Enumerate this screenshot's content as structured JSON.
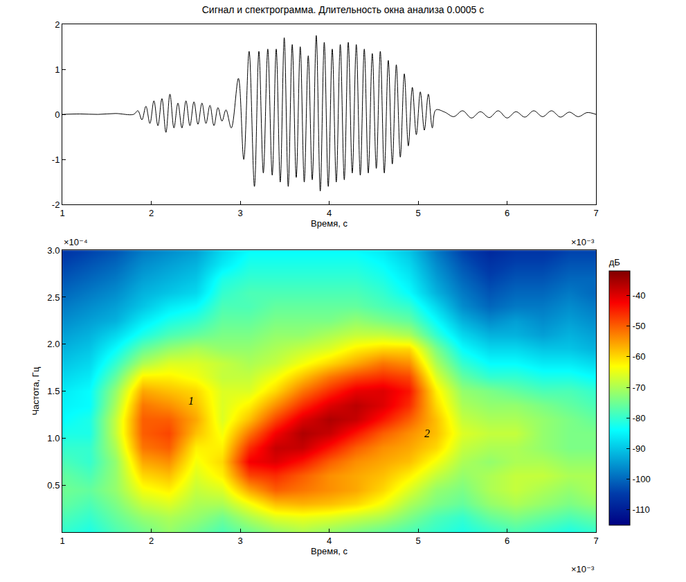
{
  "chart_data": [
    {
      "type": "line",
      "title": "Сигнал и спектрограмма. Длительность окна анализа 0.0005 с",
      "x_label": "Время, с",
      "x_exponent_label": "×10⁻³",
      "color": "#000000",
      "xlim": [
        1,
        7
      ],
      "xticks": [
        1,
        2,
        3,
        4,
        5,
        6,
        7
      ],
      "ylim": [
        -2,
        2
      ],
      "yticks": [
        -2,
        -1,
        0,
        1,
        2
      ],
      "x": [
        1.0,
        1.2,
        1.4,
        1.6,
        1.8,
        1.85,
        1.895,
        1.94,
        1.985,
        2.03,
        2.075,
        2.12,
        2.165,
        2.21,
        2.255,
        2.3,
        2.345,
        2.39,
        2.435,
        2.48,
        2.525,
        2.57,
        2.615,
        2.66,
        2.705,
        2.75,
        2.795,
        2.84,
        2.9,
        2.98,
        3.04,
        3.1,
        3.16,
        3.21,
        3.26,
        3.31,
        3.36,
        3.405,
        3.45,
        3.495,
        3.54,
        3.585,
        3.63,
        3.675,
        3.72,
        3.765,
        3.81,
        3.855,
        3.9,
        3.945,
        3.99,
        4.035,
        4.08,
        4.125,
        4.17,
        4.215,
        4.26,
        4.305,
        4.35,
        4.395,
        4.44,
        4.485,
        4.53,
        4.575,
        4.62,
        4.665,
        4.71,
        4.755,
        4.8,
        4.845,
        4.89,
        4.935,
        4.98,
        5.025,
        5.07,
        5.115,
        5.16,
        5.2,
        5.3,
        5.4,
        5.5,
        5.6,
        5.7,
        5.8,
        5.9,
        6.0,
        6.1,
        6.2,
        6.3,
        6.4,
        6.5,
        6.6,
        6.7,
        6.8,
        6.9,
        7.0
      ],
      "values": [
        0,
        0.01,
        0,
        0.02,
        0,
        0.08,
        -0.12,
        0.18,
        -0.2,
        0.3,
        -0.25,
        0.35,
        -0.4,
        0.45,
        -0.3,
        0.25,
        -0.3,
        0.3,
        -0.25,
        0.28,
        -0.22,
        0.25,
        -0.2,
        0.2,
        -0.25,
        0.15,
        -0.15,
        0.1,
        -0.3,
        0.8,
        -1.0,
        1.4,
        -1.6,
        1.4,
        -1.3,
        1.45,
        -1.35,
        1.45,
        -1.5,
        1.7,
        -1.6,
        1.55,
        -1.4,
        1.5,
        -1.5,
        1.3,
        -1.45,
        1.75,
        -1.7,
        1.6,
        -1.6,
        1.45,
        -1.5,
        1.55,
        -1.45,
        1.6,
        -1.3,
        1.55,
        -1.35,
        1.45,
        -1.3,
        1.35,
        -1.2,
        1.4,
        -1.3,
        1.2,
        -1.1,
        1.1,
        -0.95,
        0.9,
        -0.7,
        0.6,
        -0.45,
        0.5,
        -0.35,
        0.45,
        -0.3,
        0.1,
        0.05,
        -0.05,
        0.08,
        -0.08,
        0.06,
        -0.07,
        0.08,
        -0.08,
        0.06,
        -0.06,
        0.08,
        -0.05,
        0.08,
        -0.06,
        0.05,
        -0.05,
        0.04,
        0
      ]
    },
    {
      "type": "heatmap",
      "x_label": "Время, с",
      "y_label": "Частота, Гц",
      "x_exponent_label": "×10⁻³",
      "y_exponent_label": "×10⁻⁴",
      "xlim": [
        1,
        7
      ],
      "xticks": [
        1,
        2,
        3,
        4,
        5,
        6,
        7
      ],
      "ylim": [
        0,
        3
      ],
      "yticks": [
        0.5,
        {
          "value": 1,
          "label": "1.0"
        },
        1.5,
        {
          "value": 2,
          "label": "2.0"
        },
        2.5,
        {
          "value": 3,
          "label": "3.0"
        }
      ],
      "colorbar_title": "дБ",
      "zlim": [
        -115,
        -32
      ],
      "zticks": [
        -110,
        -100,
        -90,
        -80,
        -70,
        -60,
        -50,
        -40
      ],
      "annotations": [
        {
          "text": "1",
          "x": 2.45,
          "y": 1.4
        },
        {
          "text": "2",
          "x": 5.1,
          "y": 1.05
        }
      ],
      "x": [
        1.0,
        1.3,
        1.6,
        1.9,
        2.2,
        2.5,
        2.8,
        3.1,
        3.4,
        3.7,
        4.0,
        4.3,
        4.6,
        4.9,
        5.2,
        5.5,
        5.8,
        6.1,
        6.4,
        6.7,
        7.0
      ],
      "y": [
        0,
        0.15,
        0.3,
        0.45,
        0.6,
        0.75,
        0.9,
        1.05,
        1.2,
        1.35,
        1.5,
        1.65,
        1.8,
        1.95,
        2.1,
        2.25,
        2.4,
        2.55,
        2.7,
        2.85,
        3.0
      ],
      "z": [
        [
          -80,
          -82,
          -78,
          -75,
          -72,
          -75,
          -78,
          -75,
          -72,
          -70,
          -72,
          -74,
          -76,
          -78,
          -80,
          -82,
          -80,
          -78,
          -80,
          -82,
          -80
        ],
        [
          -78,
          -80,
          -76,
          -72,
          -70,
          -72,
          -75,
          -70,
          -66,
          -65,
          -66,
          -68,
          -70,
          -74,
          -78,
          -80,
          -76,
          -74,
          -76,
          -78,
          -76
        ],
        [
          -76,
          -78,
          -74,
          -68,
          -66,
          -70,
          -70,
          -64,
          -58,
          -57,
          -58,
          -60,
          -64,
          -70,
          -74,
          -76,
          -72,
          -70,
          -72,
          -74,
          -72
        ],
        [
          -75,
          -76,
          -72,
          -64,
          -62,
          -68,
          -66,
          -56,
          -50,
          -52,
          -54,
          -56,
          -60,
          -66,
          -72,
          -74,
          -70,
          -68,
          -70,
          -72,
          -70
        ],
        [
          -76,
          -78,
          -72,
          -60,
          -58,
          -66,
          -62,
          -48,
          -46,
          -50,
          -54,
          -56,
          -58,
          -62,
          -68,
          -72,
          -70,
          -68,
          -68,
          -70,
          -70
        ],
        [
          -78,
          -80,
          -72,
          -56,
          -54,
          -64,
          -60,
          -42,
          -40,
          -44,
          -50,
          -54,
          -56,
          -58,
          -64,
          -70,
          -72,
          -70,
          -70,
          -72,
          -72
        ],
        [
          -80,
          -80,
          -70,
          -52,
          -50,
          -62,
          -62,
          -46,
          -38,
          -38,
          -44,
          -50,
          -54,
          -56,
          -60,
          -68,
          -70,
          -70,
          -72,
          -74,
          -74
        ],
        [
          -82,
          -82,
          -68,
          -50,
          -48,
          -58,
          -64,
          -52,
          -42,
          -36,
          -38,
          -44,
          -50,
          -54,
          -58,
          -66,
          -68,
          -68,
          -72,
          -74,
          -74
        ],
        [
          -84,
          -82,
          -68,
          -50,
          -50,
          -56,
          -66,
          -58,
          -48,
          -40,
          -36,
          -38,
          -44,
          -50,
          -58,
          -68,
          -70,
          -70,
          -72,
          -74,
          -76
        ],
        [
          -85,
          -84,
          -70,
          -52,
          -54,
          -58,
          -66,
          -62,
          -54,
          -46,
          -40,
          -37,
          -40,
          -46,
          -60,
          -70,
          -72,
          -72,
          -74,
          -76,
          -78
        ],
        [
          -86,
          -84,
          -72,
          -56,
          -58,
          -60,
          -66,
          -66,
          -60,
          -52,
          -46,
          -41,
          -40,
          -44,
          -62,
          -72,
          -74,
          -76,
          -78,
          -78,
          -80
        ],
        [
          -88,
          -86,
          -76,
          -62,
          -62,
          -64,
          -68,
          -68,
          -64,
          -58,
          -52,
          -48,
          -46,
          -48,
          -66,
          -76,
          -80,
          -80,
          -82,
          -82,
          -84
        ],
        [
          -90,
          -88,
          -80,
          -70,
          -66,
          -66,
          -68,
          -70,
          -68,
          -64,
          -60,
          -56,
          -52,
          -54,
          -70,
          -80,
          -84,
          -84,
          -86,
          -86,
          -88
        ],
        [
          -92,
          -90,
          -84,
          -76,
          -72,
          -70,
          -72,
          -72,
          -70,
          -68,
          -66,
          -62,
          -60,
          -60,
          -74,
          -84,
          -88,
          -88,
          -90,
          -90,
          -92
        ],
        [
          -94,
          -92,
          -88,
          -82,
          -78,
          -76,
          -74,
          -74,
          -72,
          -72,
          -70,
          -68,
          -68,
          -70,
          -80,
          -88,
          -92,
          -92,
          -94,
          -92,
          -94
        ],
        [
          -96,
          -94,
          -92,
          -86,
          -82,
          -80,
          -76,
          -76,
          -74,
          -74,
          -74,
          -72,
          -74,
          -76,
          -84,
          -92,
          -96,
          -94,
          -96,
          -94,
          -96
        ],
        [
          -98,
          -96,
          -94,
          -90,
          -86,
          -84,
          -78,
          -78,
          -76,
          -76,
          -76,
          -76,
          -78,
          -80,
          -88,
          -96,
          -100,
          -98,
          -98,
          -96,
          -98
        ],
        [
          -100,
          -98,
          -96,
          -92,
          -90,
          -88,
          -80,
          -78,
          -78,
          -78,
          -78,
          -78,
          -80,
          -84,
          -92,
          -98,
          -102,
          -100,
          -100,
          -98,
          -100
        ],
        [
          -102,
          -100,
          -98,
          -94,
          -92,
          -90,
          -82,
          -80,
          -80,
          -80,
          -80,
          -80,
          -82,
          -86,
          -94,
          -100,
          -104,
          -102,
          -102,
          -100,
          -100
        ],
        [
          -104,
          -102,
          -100,
          -96,
          -94,
          -92,
          -86,
          -82,
          -82,
          -82,
          -82,
          -82,
          -84,
          -88,
          -96,
          -102,
          -106,
          -104,
          -104,
          -102,
          -102
        ],
        [
          -106,
          -104,
          -102,
          -98,
          -96,
          -94,
          -88,
          -84,
          -84,
          -84,
          -84,
          -84,
          -86,
          -90,
          -98,
          -104,
          -108,
          -106,
          -106,
          -104,
          -104
        ]
      ]
    }
  ]
}
